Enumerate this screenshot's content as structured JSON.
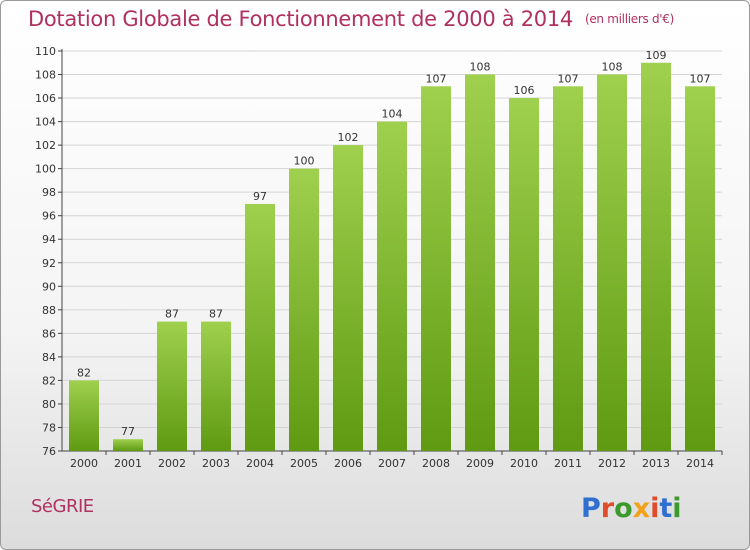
{
  "title": "Dotation Globale de Fonctionnement de 2000 à 2014",
  "unit": "(en milliers d'€)",
  "commune": "SéGRIE",
  "brand": "Proxiti",
  "colors": {
    "title": "#b03060",
    "bar_light": "#9fd04e",
    "bar_dark": "#5f9a12",
    "grid": "#d4d4d4",
    "axis": "#444444"
  },
  "chart_data": {
    "type": "bar",
    "title": "Dotation Globale de Fonctionnement de 2000 à 2014",
    "categories": [
      "2000",
      "2001",
      "2002",
      "2003",
      "2004",
      "2005",
      "2006",
      "2007",
      "2008",
      "2009",
      "2010",
      "2011",
      "2012",
      "2013",
      "2014"
    ],
    "values": [
      82,
      77,
      87,
      87,
      97,
      100,
      102,
      104,
      107,
      108,
      106,
      107,
      108,
      109,
      107
    ],
    "ylim": [
      76,
      110
    ],
    "yticks": [
      76,
      78,
      80,
      82,
      84,
      86,
      88,
      90,
      92,
      94,
      96,
      98,
      100,
      102,
      104,
      106,
      108,
      110
    ],
    "grid": true,
    "data_labels": true
  }
}
